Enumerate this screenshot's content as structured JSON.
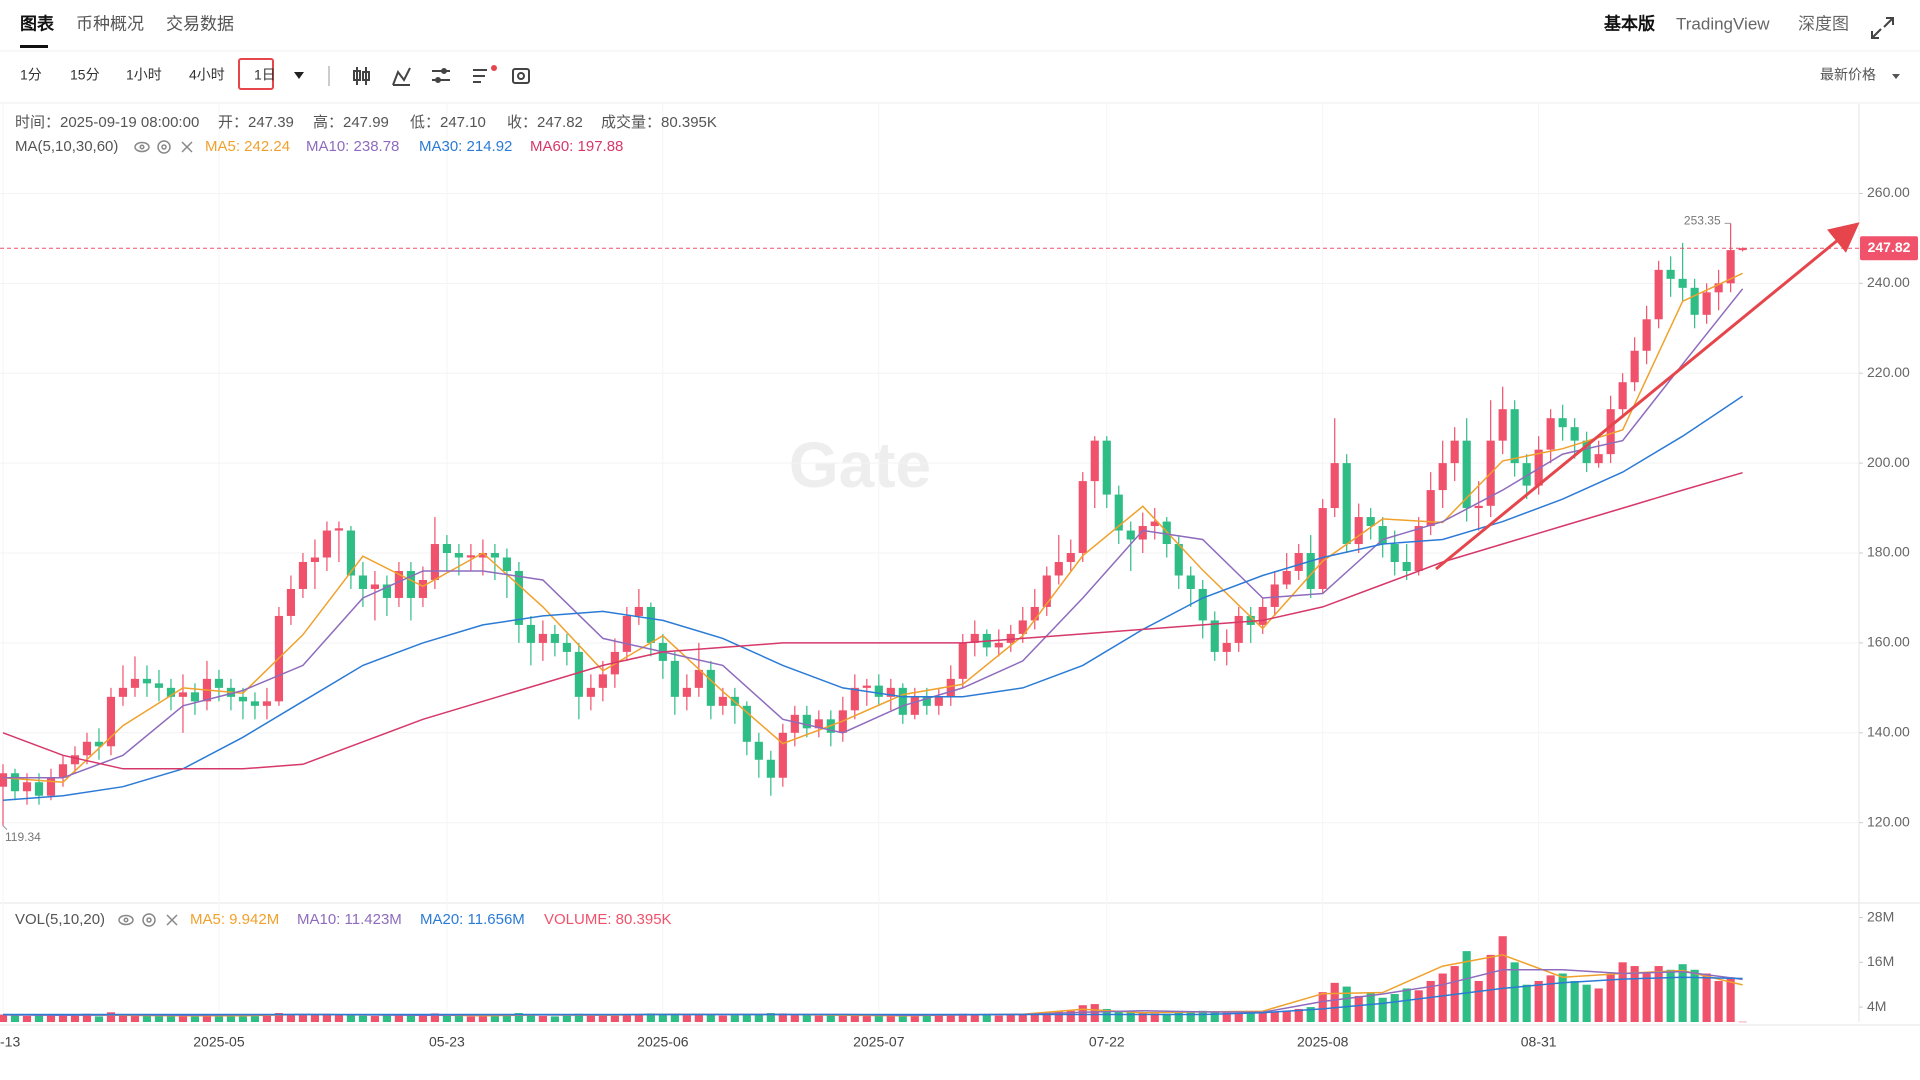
{
  "tabs": {
    "items": [
      "图表",
      "币种概况",
      "交易数据"
    ],
    "right": [
      "基本版",
      "TradingView",
      "深度图"
    ]
  },
  "toolbar": {
    "intervals": [
      "1分",
      "15分",
      "1小时",
      "4小时",
      "1日"
    ],
    "price_type": "最新价格"
  },
  "chart_data": {
    "type": "candlestick",
    "info": [
      "时间：2025-09-19 08:00:00",
      "开：247.39",
      "高：247.99",
      "低：247.10",
      "收：247.82",
      "成交量：80.395K"
    ],
    "ma_title": "MA(5,10,30,60)",
    "watermark": "Gate",
    "grid": true,
    "xlim": [
      -0.25,
      154.7
    ],
    "xticks": [
      {
        "value": 0,
        "label": "-13"
      },
      {
        "value": 18,
        "label": "2025-05"
      },
      {
        "value": 37,
        "label": "05-23"
      },
      {
        "value": 55,
        "label": "2025-06"
      },
      {
        "value": 73,
        "label": "2025-07"
      },
      {
        "value": 92,
        "label": "07-22"
      },
      {
        "value": 110,
        "label": "2025-08"
      },
      {
        "value": 128,
        "label": "08-31"
      }
    ],
    "ylim": [
      102.8,
      279.9
    ],
    "yticks": [
      {
        "value": 120,
        "label": "120.00"
      },
      {
        "value": 140,
        "label": "140.00"
      },
      {
        "value": 160,
        "label": "160.00"
      },
      {
        "value": 180,
        "label": "180.00"
      },
      {
        "value": 200,
        "label": "200.00"
      },
      {
        "value": 220,
        "label": "220.00"
      },
      {
        "value": 240,
        "label": "240.00"
      },
      {
        "value": 260,
        "label": "260.00"
      }
    ],
    "candles": {
      "up_color": "#f0516b",
      "down_color": "#2ebd85",
      "open": [
        128,
        131,
        127,
        129,
        126,
        130,
        133,
        135,
        138,
        137,
        148,
        150,
        152,
        151,
        150,
        148,
        149,
        147,
        152,
        150,
        148,
        147,
        146,
        147,
        166,
        172,
        178,
        179,
        185,
        185,
        175,
        172,
        173,
        170,
        176,
        170,
        174,
        182,
        180,
        179,
        179,
        180,
        179,
        176,
        164,
        160,
        162,
        160,
        158,
        148,
        150,
        153,
        158,
        166,
        168,
        160,
        156,
        148,
        150,
        154,
        146,
        148,
        146,
        138,
        134,
        130,
        140,
        144,
        141,
        143,
        140,
        145,
        150,
        150.5,
        148,
        150,
        144,
        148,
        146,
        148,
        152,
        160,
        162,
        159,
        160,
        162,
        165,
        168,
        175,
        178,
        180,
        196,
        205,
        193,
        185,
        183,
        186,
        187,
        182,
        175,
        172,
        165,
        158,
        160,
        166,
        164,
        168,
        173,
        176,
        180,
        172,
        190,
        200,
        182,
        188,
        186,
        182,
        178,
        176,
        186,
        194,
        200,
        205,
        190,
        190.5,
        205,
        212,
        200,
        195,
        203,
        210,
        208,
        205,
        200,
        202,
        212,
        218,
        225,
        232,
        243,
        241,
        239,
        233,
        238,
        240,
        247.39
      ],
      "high": [
        133,
        132,
        131,
        131,
        132,
        135,
        137,
        140,
        141,
        150,
        155,
        157,
        155,
        154,
        152,
        153,
        151,
        156,
        154,
        152,
        150,
        149,
        150,
        168,
        175,
        180,
        183,
        187,
        187,
        186,
        178,
        176,
        175,
        178,
        178,
        177,
        188,
        184,
        182,
        182,
        183,
        182,
        181,
        178,
        166,
        165,
        164,
        162,
        160,
        153,
        156,
        161,
        168,
        172,
        169,
        162,
        158,
        153,
        160,
        156,
        150,
        150,
        147,
        140,
        136,
        142,
        146,
        146,
        145,
        145,
        148,
        153,
        152,
        153,
        152,
        151,
        150,
        150,
        150,
        155,
        162,
        165,
        163,
        163,
        164,
        168,
        172,
        177,
        184,
        183,
        198,
        206,
        206,
        195,
        187,
        189,
        190,
        188,
        184,
        177,
        174,
        167,
        163,
        168,
        168,
        170,
        176,
        180,
        182,
        184,
        192,
        210,
        202,
        191,
        190,
        188,
        185,
        182,
        188,
        198,
        205,
        208,
        210,
        196,
        214,
        217,
        214,
        202,
        206,
        212,
        213,
        210,
        207,
        205,
        215,
        220,
        228,
        235,
        245,
        246,
        249,
        241,
        240,
        243,
        253.35,
        247.99
      ],
      "low": [
        119.34,
        125,
        124,
        124,
        125,
        128,
        131,
        133,
        134,
        135,
        146,
        148,
        148,
        147,
        145,
        140,
        144,
        145,
        147,
        145,
        143,
        143,
        143,
        146,
        164,
        170,
        172,
        176,
        178,
        172,
        168,
        165,
        166,
        168,
        165,
        168,
        172,
        176,
        175,
        176,
        175,
        174,
        170,
        160,
        155,
        156,
        157,
        155,
        143,
        145,
        147,
        150,
        156,
        164,
        157,
        152,
        144,
        145,
        148,
        143,
        144,
        142,
        135,
        130,
        126,
        128,
        137,
        139,
        139,
        137,
        138,
        143,
        146,
        146,
        145,
        142,
        143,
        144,
        144,
        146,
        150,
        157,
        157,
        157,
        158,
        160,
        163,
        166,
        173,
        176,
        178,
        190,
        190,
        182,
        176,
        180,
        183,
        179,
        172,
        168,
        161,
        156,
        155,
        158,
        160,
        162,
        166,
        172,
        174,
        170,
        171,
        188,
        180,
        180,
        183,
        179,
        175,
        174,
        175,
        184,
        190,
        196,
        187,
        185,
        188,
        202,
        197,
        192,
        193,
        200,
        205,
        201,
        198,
        199,
        200,
        210,
        216,
        222,
        230,
        237,
        236,
        230,
        231,
        234,
        238,
        247.1
      ],
      "close": [
        131,
        127,
        129,
        126,
        130,
        133,
        135,
        138,
        137,
        148,
        150,
        152,
        151,
        150,
        148,
        149,
        147,
        152,
        150,
        148,
        147,
        146,
        147,
        166,
        172,
        178,
        179,
        185,
        185.5,
        175,
        172,
        173,
        170,
        176,
        170,
        174,
        182,
        180,
        179,
        179.5,
        180,
        179,
        176,
        164,
        160,
        162,
        160,
        158,
        148,
        150,
        153,
        158,
        166,
        168,
        160,
        156,
        148,
        150,
        154,
        146,
        148,
        146,
        138,
        134,
        130,
        140,
        144,
        141,
        143,
        140,
        145,
        150,
        150.5,
        148,
        150,
        144,
        148,
        146,
        148,
        152,
        160,
        162,
        159,
        160,
        162,
        165,
        168,
        175,
        178,
        180,
        196,
        205,
        193,
        185,
        183,
        186,
        187,
        182,
        175,
        172,
        165,
        158,
        160,
        166,
        164,
        168,
        173,
        176,
        180,
        172,
        190,
        200,
        182,
        188,
        186,
        182,
        178,
        176,
        186,
        194,
        200,
        205,
        190,
        190.5,
        205,
        212,
        200,
        195,
        203,
        210,
        208,
        205,
        200,
        202,
        212,
        218,
        225,
        232,
        243,
        241,
        239,
        233,
        238,
        240,
        247.39,
        247.82
      ]
    },
    "ma": {
      "x": [
        0,
        5,
        10,
        15,
        20,
        25,
        30,
        35,
        40,
        45,
        50,
        55,
        60,
        65,
        70,
        75,
        80,
        85,
        90,
        95,
        100,
        105,
        110,
        115,
        120,
        125,
        130,
        135,
        140,
        145
      ],
      "series": [
        {
          "name": "MA5: 242.24",
          "color": "#f0a12b",
          "values": [
            130,
            129,
            141.6,
            150,
            148.8,
            161.8,
            179.3,
            172.6,
            180,
            168,
            153.8,
            161.6,
            149.2,
            137.6,
            142.6,
            148.5,
            150.8,
            161.6,
            179.4,
            190.4,
            176.2,
            163.2,
            178.2,
            187.6,
            186.8,
            200.5,
            203.2,
            207.4,
            236,
            242.24
          ]
        },
        {
          "name": "MA10: 238.78",
          "color": "#8e6bbd",
          "values": [
            130,
            130,
            135,
            146,
            149.4,
            155,
            170,
            176,
            176,
            174,
            161,
            158,
            155,
            143,
            140,
            146,
            150,
            156,
            170,
            185,
            183,
            170,
            171,
            183,
            187,
            194,
            202,
            205,
            222,
            238.78
          ]
        },
        {
          "name": "MA30: 214.92",
          "color": "#2b7bd6",
          "values": [
            125,
            126,
            128,
            132,
            139,
            147,
            155,
            160,
            164,
            166,
            167,
            165,
            161,
            155,
            150,
            148,
            148,
            150,
            155,
            163,
            170,
            175,
            179,
            182,
            183,
            187,
            192,
            198,
            206,
            214.92
          ]
        },
        {
          "name": "MA60: 197.88",
          "color": "#d6386a",
          "values": [
            140,
            135,
            132,
            132,
            132,
            133,
            138,
            143,
            147,
            151,
            155,
            158,
            159,
            160,
            160,
            160,
            160,
            161,
            162,
            163,
            164,
            165,
            168,
            173,
            178,
            182,
            186,
            190,
            194,
            197.88
          ]
        }
      ]
    },
    "volume": {
      "title": "VOL(5,10,20)",
      "label": "VOLUME: 80.395K",
      "ylim": [
        0,
        31.1
      ],
      "yticks": [
        {
          "value": 4,
          "label": "4M"
        },
        {
          "value": 16,
          "label": "16M"
        },
        {
          "value": 28,
          "label": "28M"
        }
      ],
      "values": [
        2.0,
        1.8,
        1.6,
        1.9,
        2.1,
        1.7,
        1.8,
        2.2,
        1.5,
        2.6,
        2.0,
        1.8,
        1.7,
        1.6,
        1.9,
        1.5,
        1.7,
        2.0,
        1.6,
        1.8,
        1.5,
        1.6,
        1.7,
        2.4,
        2.1,
        1.9,
        2.0,
        2.2,
        1.8,
        2.0,
        1.7,
        1.6,
        1.8,
        1.9,
        2.0,
        1.7,
        2.3,
        1.9,
        1.6,
        1.5,
        1.6,
        1.7,
        1.8,
        2.4,
        2.0,
        1.6,
        1.5,
        1.7,
        2.2,
        1.9,
        1.8,
        1.7,
        2.1,
        1.9,
        2.3,
        2.0,
        2.2,
        1.8,
        1.9,
        2.1,
        1.7,
        1.8,
        2.2,
        2.0,
        2.4,
        2.3,
        1.9,
        1.8,
        1.7,
        1.8,
        1.9,
        2.0,
        1.6,
        1.7,
        1.8,
        1.9,
        1.6,
        1.7,
        1.8,
        1.9,
        2.2,
        2.0,
        1.8,
        1.7,
        1.9,
        2.0,
        2.2,
        2.5,
        2.8,
        3.0,
        4.5,
        4.8,
        3.5,
        3.0,
        2.6,
        2.4,
        2.3,
        2.2,
        2.6,
        2.8,
        3.0,
        2.9,
        2.5,
        2.3,
        2.4,
        2.6,
        2.8,
        3.0,
        3.5,
        4.0,
        8.0,
        10.5,
        9.5,
        7.0,
        8.0,
        6.5,
        7.5,
        9.0,
        8.5,
        11.0,
        13.0,
        15.0,
        19.0,
        11.0,
        18.0,
        23.0,
        16.0,
        10.0,
        11.0,
        12.5,
        13.0,
        11.0,
        10.0,
        9.0,
        13.0,
        16.0,
        15.0,
        13.0,
        15.0,
        14.0,
        15.5,
        14.0,
        13.0,
        11.0,
        12.0,
        0.080395
      ],
      "ma_x": [
        0,
        5,
        10,
        15,
        20,
        25,
        30,
        35,
        40,
        45,
        50,
        55,
        60,
        65,
        70,
        75,
        80,
        85,
        90,
        95,
        100,
        105,
        110,
        115,
        120,
        125,
        130,
        135,
        140,
        145
      ],
      "series": [
        {
          "name": "MA5: 9.942M",
          "color": "#f0a12b",
          "values": [
            1.9,
            1.9,
            1.8,
            1.7,
            1.7,
            2.0,
            1.9,
            1.9,
            1.7,
            1.9,
            1.8,
            2.1,
            2.0,
            2.0,
            1.8,
            1.7,
            1.9,
            2.1,
            3.4,
            2.5,
            2.7,
            2.9,
            7.6,
            7.9,
            15,
            18,
            12,
            13,
            13.8,
            9.942
          ]
        },
        {
          "name": "MA10: 11.423M",
          "color": "#8e6bbd",
          "values": [
            1.9,
            1.8,
            1.9,
            1.8,
            1.9,
            2.0,
            1.9,
            1.8,
            1.9,
            1.9,
            1.9,
            2.0,
            2.0,
            2.0,
            2.0,
            1.8,
            1.9,
            2.0,
            2.6,
            3.0,
            2.7,
            2.6,
            5.5,
            7.5,
            10,
            14,
            14,
            13,
            13.5,
            11.423
          ]
        },
        {
          "name": "MA20: 11.656M",
          "color": "#2b7bd6",
          "values": [
            2.0,
            2.0,
            2.0,
            2.0,
            2.0,
            2.0,
            2.0,
            2.0,
            2.0,
            2.0,
            2.0,
            2.0,
            2.0,
            2.0,
            2.0,
            2.0,
            2.0,
            2.0,
            2.0,
            2.0,
            2.0,
            2.5,
            3.5,
            5,
            7,
            9,
            10.5,
            11.5,
            12,
            11.656
          ]
        }
      ]
    }
  }
}
